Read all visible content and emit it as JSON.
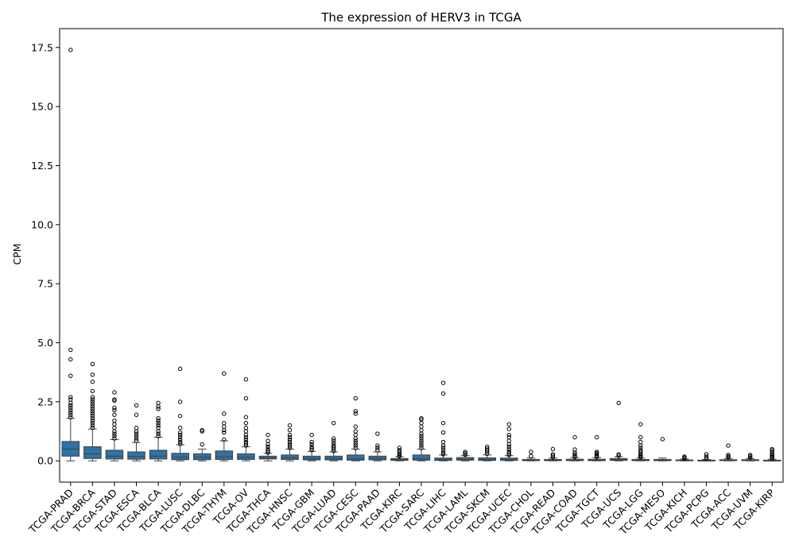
{
  "chart_data": {
    "type": "box",
    "title": "The expression of HERV3 in TCGA",
    "xlabel": "",
    "ylabel": "CPM",
    "ylim": [
      -0.9,
      18.3
    ],
    "yticks": [
      0.0,
      2.5,
      5.0,
      7.5,
      10.0,
      12.5,
      15.0,
      17.5
    ],
    "ytick_labels": [
      "0.0",
      "2.5",
      "5.0",
      "7.5",
      "10.0",
      "12.5",
      "15.0",
      "17.5"
    ],
    "grid": false,
    "box_color": "#2f72a6",
    "categories": [
      "TCGA-PRAD",
      "TCGA-BRCA",
      "TCGA-STAD",
      "TCGA-ESCA",
      "TCGA-BLCA",
      "TCGA-LUSC",
      "TCGA-DLBC",
      "TCGA-THYM",
      "TCGA-OV",
      "TCGA-THCA",
      "TCGA-HNSC",
      "TCGA-GBM",
      "TCGA-LUAD",
      "TCGA-CESC",
      "TCGA-PAAD",
      "TCGA-KIRC",
      "TCGA-SARC",
      "TCGA-LIHC",
      "TCGA-LAML",
      "TCGA-SKCM",
      "TCGA-UCEC",
      "TCGA-CHOL",
      "TCGA-READ",
      "TCGA-COAD",
      "TCGA-TGCT",
      "TCGA-UCS",
      "TCGA-LGG",
      "TCGA-MESO",
      "TCGA-KICH",
      "TCGA-PCPG",
      "TCGA-ACC",
      "TCGA-UVM",
      "TCGA-KIRP"
    ],
    "boxes": [
      {
        "whislo": 0.0,
        "q1": 0.2,
        "med": 0.5,
        "q3": 0.82,
        "whishi": 1.8,
        "fliers": [
          1.85,
          1.95,
          2.05,
          2.15,
          2.25,
          2.35,
          2.45,
          2.6,
          2.7,
          3.6,
          4.3,
          4.7,
          17.4
        ]
      },
      {
        "whislo": 0.0,
        "q1": 0.1,
        "med": 0.3,
        "q3": 0.6,
        "whishi": 1.35,
        "fliers": [
          1.4,
          1.5,
          1.6,
          1.7,
          1.8,
          1.9,
          2.0,
          2.1,
          2.2,
          2.3,
          2.4,
          2.5,
          2.6,
          2.7,
          2.95,
          3.35,
          3.65,
          4.1
        ]
      },
      {
        "whislo": 0.0,
        "q1": 0.08,
        "med": 0.2,
        "q3": 0.45,
        "whishi": 0.9,
        "fliers": [
          0.95,
          1.05,
          1.15,
          1.25,
          1.4,
          1.55,
          1.7,
          1.95,
          2.15,
          2.25,
          2.55,
          2.6,
          2.9
        ]
      },
      {
        "whislo": 0.0,
        "q1": 0.07,
        "med": 0.18,
        "q3": 0.38,
        "whishi": 0.78,
        "fliers": [
          0.85,
          0.95,
          1.05,
          1.15,
          1.25,
          1.4,
          1.95,
          2.35
        ]
      },
      {
        "whislo": 0.0,
        "q1": 0.08,
        "med": 0.2,
        "q3": 0.45,
        "whishi": 1.0,
        "fliers": [
          1.05,
          1.15,
          1.25,
          1.4,
          1.5,
          1.6,
          1.7,
          1.8,
          2.2,
          2.3,
          2.45
        ]
      },
      {
        "whislo": 0.0,
        "q1": 0.05,
        "med": 0.15,
        "q3": 0.32,
        "whishi": 0.68,
        "fliers": [
          0.72,
          0.8,
          0.9,
          1.0,
          1.1,
          1.2,
          1.4,
          1.9,
          2.5,
          3.9
        ]
      },
      {
        "whislo": 0.0,
        "q1": 0.05,
        "med": 0.15,
        "q3": 0.3,
        "whishi": 0.5,
        "fliers": [
          0.7,
          1.25,
          1.3
        ]
      },
      {
        "whislo": 0.0,
        "q1": 0.06,
        "med": 0.17,
        "q3": 0.42,
        "whishi": 0.85,
        "fliers": [
          0.9,
          1.2,
          1.3,
          1.45,
          1.6,
          2.0,
          3.7
        ]
      },
      {
        "whislo": 0.0,
        "q1": 0.06,
        "med": 0.15,
        "q3": 0.3,
        "whishi": 0.6,
        "fliers": [
          0.65,
          0.72,
          0.8,
          0.9,
          1.0,
          1.1,
          1.25,
          1.4,
          1.6,
          1.85,
          2.65,
          3.45
        ]
      },
      {
        "whislo": 0.0,
        "q1": 0.08,
        "med": 0.13,
        "q3": 0.2,
        "whishi": 0.32,
        "fliers": [
          0.35,
          0.42,
          0.5,
          0.6,
          0.7,
          0.85,
          1.1
        ]
      },
      {
        "whislo": 0.0,
        "q1": 0.06,
        "med": 0.13,
        "q3": 0.25,
        "whishi": 0.5,
        "fliers": [
          0.55,
          0.62,
          0.7,
          0.8,
          0.9,
          1.0,
          1.1,
          1.3,
          1.5
        ]
      },
      {
        "whislo": 0.0,
        "q1": 0.04,
        "med": 0.1,
        "q3": 0.2,
        "whishi": 0.4,
        "fliers": [
          0.45,
          0.52,
          0.6,
          0.7,
          0.8,
          1.1
        ]
      },
      {
        "whislo": 0.0,
        "q1": 0.04,
        "med": 0.1,
        "q3": 0.2,
        "whishi": 0.38,
        "fliers": [
          0.42,
          0.5,
          0.58,
          0.65,
          0.75,
          0.85,
          0.95,
          1.6
        ]
      },
      {
        "whislo": 0.0,
        "q1": 0.03,
        "med": 0.08,
        "q3": 0.25,
        "whishi": 0.5,
        "fliers": [
          0.55,
          0.65,
          0.75,
          0.85,
          0.95,
          1.1,
          1.25,
          1.45,
          2.0,
          2.1,
          2.65
        ]
      },
      {
        "whislo": 0.0,
        "q1": 0.04,
        "med": 0.1,
        "q3": 0.2,
        "whishi": 0.38,
        "fliers": [
          0.45,
          0.55,
          0.65,
          1.15
        ]
      },
      {
        "whislo": 0.0,
        "q1": 0.02,
        "med": 0.05,
        "q3": 0.1,
        "whishi": 0.18,
        "fliers": [
          0.2,
          0.25,
          0.3,
          0.38,
          0.45,
          0.55
        ]
      },
      {
        "whislo": 0.0,
        "q1": 0.03,
        "med": 0.08,
        "q3": 0.25,
        "whishi": 0.5,
        "fliers": [
          0.55,
          0.65,
          0.75,
          0.85,
          0.95,
          1.05,
          1.15,
          1.3,
          1.45,
          1.6,
          1.75,
          1.8
        ]
      },
      {
        "whislo": 0.0,
        "q1": 0.02,
        "med": 0.05,
        "q3": 0.12,
        "whishi": 0.25,
        "fliers": [
          0.28,
          0.35,
          0.45,
          0.55,
          0.65,
          0.8,
          1.2,
          1.6,
          2.85,
          3.3
        ]
      },
      {
        "whislo": 0.0,
        "q1": 0.03,
        "med": 0.07,
        "q3": 0.14,
        "whishi": 0.22,
        "fliers": [
          0.26,
          0.32,
          0.38
        ]
      },
      {
        "whislo": 0.0,
        "q1": 0.02,
        "med": 0.06,
        "q3": 0.13,
        "whishi": 0.25,
        "fliers": [
          0.3,
          0.38,
          0.45,
          0.52,
          0.6
        ]
      },
      {
        "whislo": 0.0,
        "q1": 0.02,
        "med": 0.05,
        "q3": 0.12,
        "whishi": 0.22,
        "fliers": [
          0.25,
          0.32,
          0.4,
          0.5,
          0.6,
          0.7,
          0.85,
          1.0,
          1.1,
          1.35,
          1.55
        ]
      },
      {
        "whislo": 0.0,
        "q1": 0.01,
        "med": 0.03,
        "q3": 0.06,
        "whishi": 0.12,
        "fliers": [
          0.2,
          0.38
        ]
      },
      {
        "whislo": 0.0,
        "q1": 0.01,
        "med": 0.03,
        "q3": 0.06,
        "whishi": 0.12,
        "fliers": [
          0.15,
          0.22,
          0.28,
          0.5
        ]
      },
      {
        "whislo": 0.0,
        "q1": 0.01,
        "med": 0.03,
        "q3": 0.07,
        "whishi": 0.14,
        "fliers": [
          0.17,
          0.22,
          0.28,
          0.35,
          0.48,
          1.0
        ]
      },
      {
        "whislo": 0.0,
        "q1": 0.01,
        "med": 0.03,
        "q3": 0.07,
        "whishi": 0.14,
        "fliers": [
          0.17,
          0.22,
          0.28,
          0.33,
          0.38,
          1.0
        ]
      },
      {
        "whislo": 0.0,
        "q1": 0.02,
        "med": 0.05,
        "q3": 0.1,
        "whishi": 0.18,
        "fliers": [
          0.22,
          0.28,
          2.45
        ]
      },
      {
        "whislo": 0.0,
        "q1": 0.01,
        "med": 0.03,
        "q3": 0.06,
        "whishi": 0.12,
        "fliers": [
          0.15,
          0.2,
          0.25,
          0.3,
          0.38,
          0.45,
          0.55,
          0.65,
          0.8,
          1.0,
          1.55
        ]
      },
      {
        "whislo": 0.0,
        "q1": 0.01,
        "med": 0.03,
        "q3": 0.06,
        "whishi": 0.12,
        "fliers": [
          0.92
        ]
      },
      {
        "whislo": 0.0,
        "q1": 0.01,
        "med": 0.02,
        "q3": 0.04,
        "whishi": 0.08,
        "fliers": [
          0.1,
          0.14,
          0.18
        ]
      },
      {
        "whislo": 0.0,
        "q1": 0.005,
        "med": 0.01,
        "q3": 0.03,
        "whishi": 0.06,
        "fliers": [
          0.1,
          0.18,
          0.28
        ]
      },
      {
        "whislo": 0.0,
        "q1": 0.01,
        "med": 0.02,
        "q3": 0.05,
        "whishi": 0.1,
        "fliers": [
          0.15,
          0.2,
          0.25,
          0.65
        ]
      },
      {
        "whislo": 0.0,
        "q1": 0.01,
        "med": 0.02,
        "q3": 0.05,
        "whishi": 0.1,
        "fliers": [
          0.14,
          0.2,
          0.25
        ]
      },
      {
        "whislo": 0.0,
        "q1": 0.005,
        "med": 0.01,
        "q3": 0.03,
        "whishi": 0.07,
        "fliers": [
          0.1,
          0.15,
          0.2,
          0.25,
          0.3,
          0.38,
          0.45,
          0.5
        ]
      }
    ]
  }
}
